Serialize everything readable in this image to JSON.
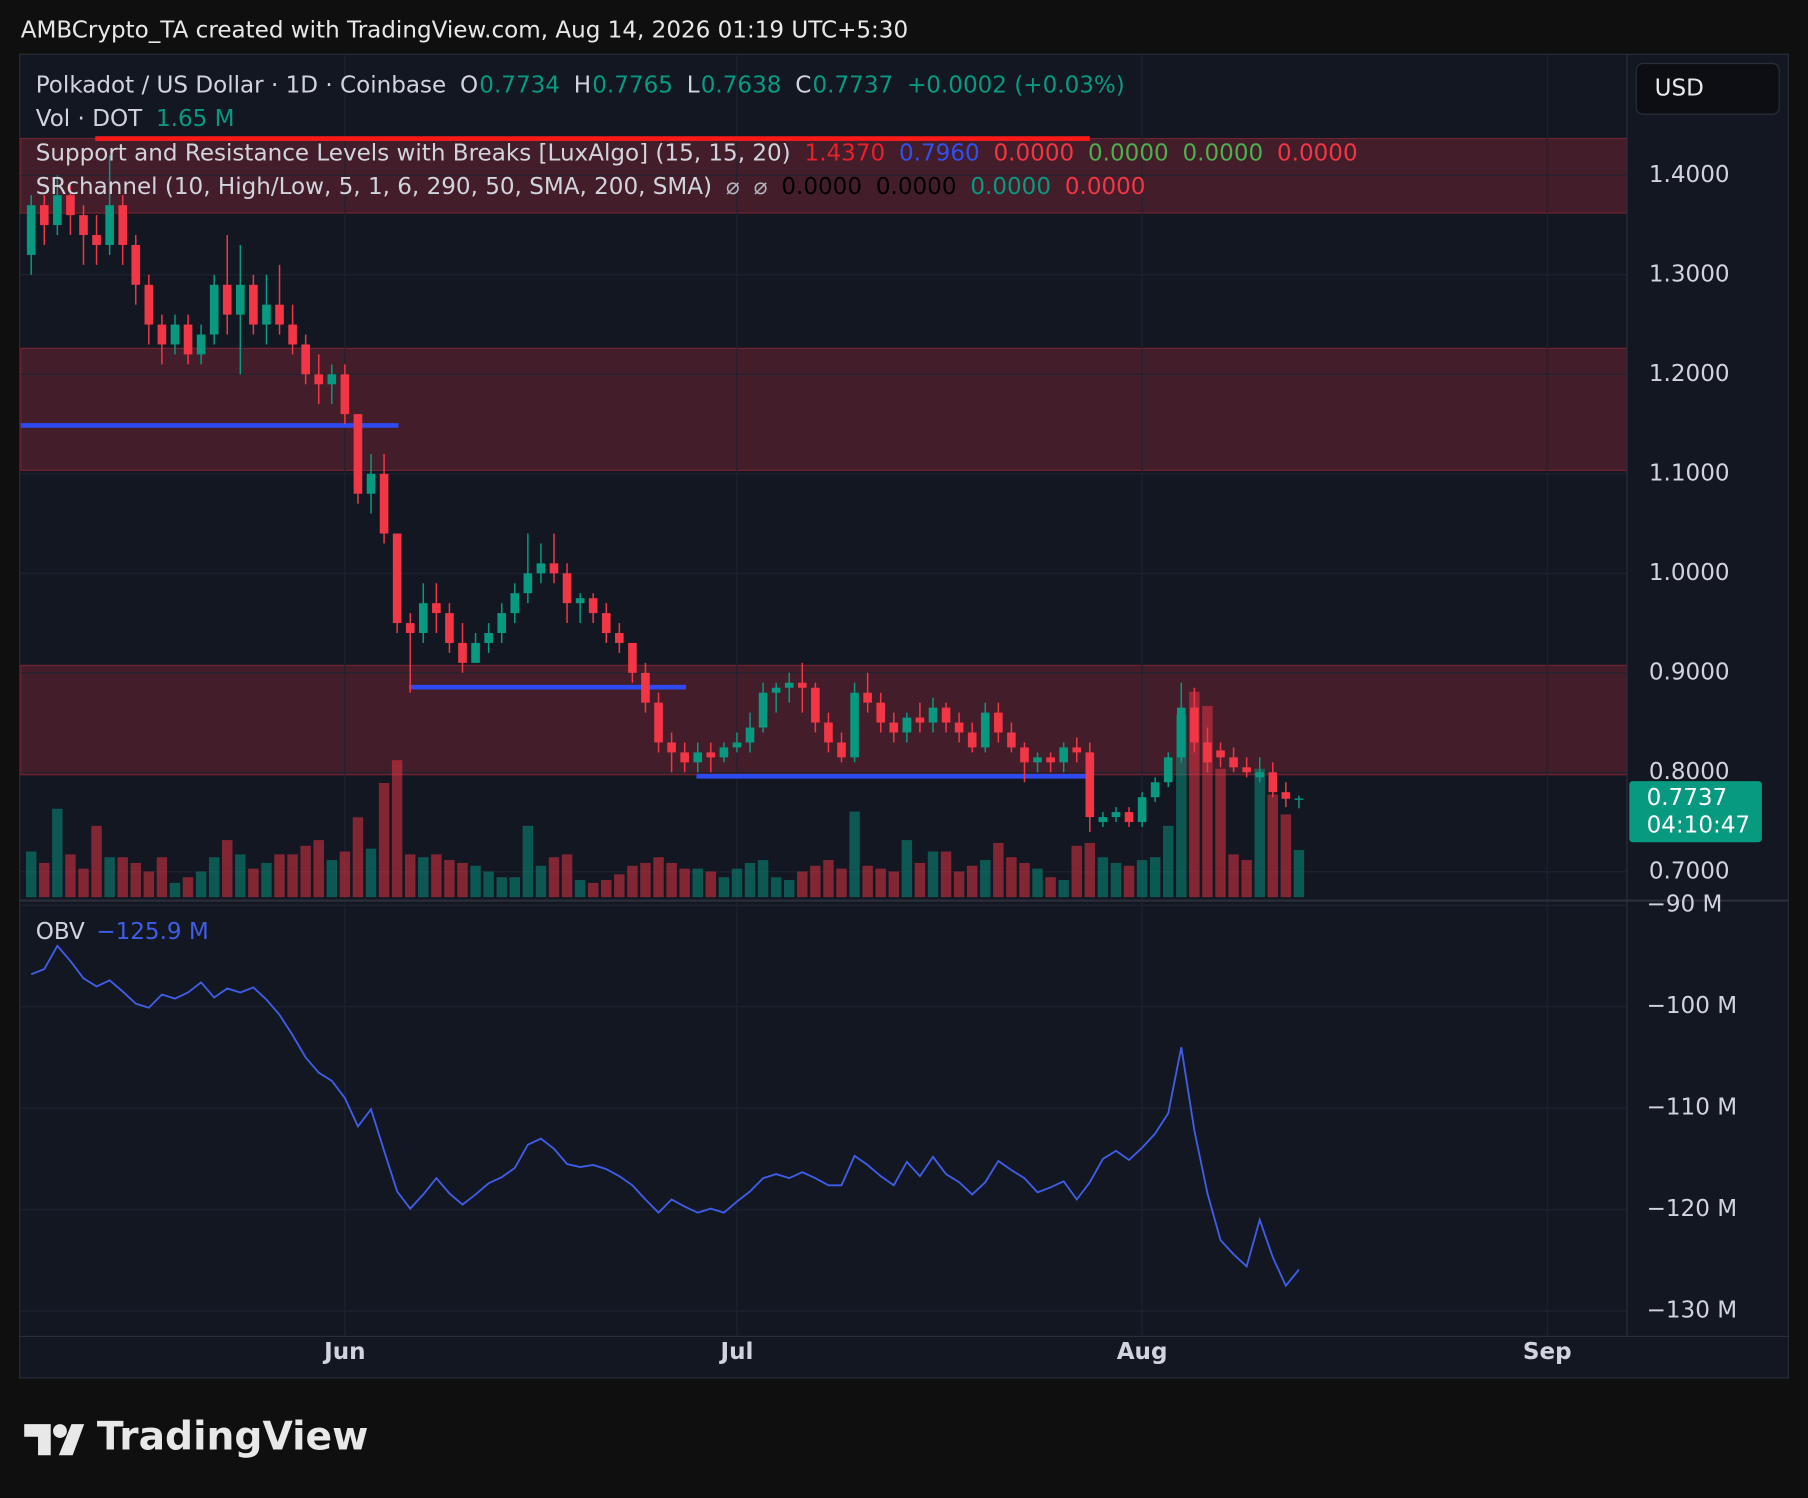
{
  "header": {
    "attribution": "AMBCrypto_TA created with TradingView.com, Aug 14, 2026 01:19 UTC+5:30"
  },
  "footer": {
    "logo": "TradingView"
  },
  "chart_data": {
    "type": "candlestick",
    "currency": "USD",
    "legend_rows": [
      [
        {
          "text": "Polkadot / US Dollar · 1D · Coinbase",
          "color": "#d1d4dc"
        },
        {
          "text": "O",
          "color": "#d1d4dc"
        },
        {
          "text": "0.7734",
          "color": "#089981"
        },
        {
          "text": "H",
          "color": "#d1d4dc"
        },
        {
          "text": "0.7765",
          "color": "#089981"
        },
        {
          "text": "L",
          "color": "#d1d4dc"
        },
        {
          "text": "0.7638",
          "color": "#089981"
        },
        {
          "text": "C",
          "color": "#d1d4dc"
        },
        {
          "text": "0.7737",
          "color": "#089981"
        },
        {
          "text": "+0.0002 (+0.03%)",
          "color": "#089981"
        }
      ],
      [
        {
          "text": "Vol · DOT",
          "color": "#d1d4dc"
        },
        {
          "text": "1.65 M",
          "color": "#089981"
        }
      ],
      [
        {
          "text": "Support and Resistance Levels with Breaks [LuxAlgo] (15, 15, 20)",
          "color": "#d1d4dc"
        },
        {
          "text": "1.4370",
          "color": "#e8202c"
        },
        {
          "text": "0.7960",
          "color": "#3050f0"
        },
        {
          "text": "0.0000",
          "color": "#f23645"
        },
        {
          "text": "0.0000",
          "color": "#4caf50"
        },
        {
          "text": "0.0000",
          "color": "#4caf50"
        },
        {
          "text": "0.0000",
          "color": "#f23645"
        }
      ],
      [
        {
          "text": "SRchannel (10, High/Low, 5, 1, 6, 290, 50, SMA, 200, SMA)",
          "color": "#d1d4dc"
        },
        {
          "text": "⌀",
          "color": "#b2b5be"
        },
        {
          "text": "⌀",
          "color": "#b2b5be"
        },
        {
          "text": "0.0000",
          "color": "#000000"
        },
        {
          "text": "0.0000",
          "color": "#000000"
        },
        {
          "text": "0.0000",
          "color": "#089981"
        },
        {
          "text": "0.0000",
          "color": "#f23645"
        }
      ]
    ],
    "price_tag": {
      "price": "0.7737",
      "countdown": "04:10:47",
      "color": "#089981"
    },
    "up_color": "#089981",
    "down_color": "#f23645",
    "xlim": [
      -0.8,
      122.1
    ],
    "xticks": [
      {
        "value": 24,
        "label": "Jun"
      },
      {
        "value": 54,
        "label": "Jul"
      },
      {
        "value": 85,
        "label": "Aug"
      },
      {
        "value": 116,
        "label": "Sep"
      }
    ],
    "ylim": [
      0.6745,
      1.5205
    ],
    "yticks": [
      {
        "value": 0.7,
        "label": "0.7000"
      },
      {
        "value": 0.8,
        "label": "0.8000"
      },
      {
        "value": 0.9,
        "label": "0.9000"
      },
      {
        "value": 1.0,
        "label": "1.0000"
      },
      {
        "value": 1.1,
        "label": "1.1000"
      },
      {
        "value": 1.2,
        "label": "1.2000"
      },
      {
        "value": 1.3,
        "label": "1.3000"
      },
      {
        "value": 1.4,
        "label": "1.4000"
      }
    ],
    "grid": true,
    "volume_ylim": [
      0,
      8
    ],
    "zone_color": "#f23645",
    "zones": [
      {
        "from": 1.362,
        "to": 1.437
      },
      {
        "from": 1.1034,
        "to": 1.2262
      },
      {
        "from": 0.7975,
        "to": 0.9075
      }
    ],
    "levels": [
      {
        "price": 1.437,
        "start": 4.9,
        "end": 81,
        "color": "#ff1a1a"
      },
      {
        "price": 1.1486,
        "start": -0.8,
        "end": 28.1,
        "color": "#2d4bf0"
      },
      {
        "price": 0.8855,
        "start": 28.9,
        "end": 50.1,
        "color": "#2d4bf0"
      },
      {
        "price": 0.796,
        "start": 50.9,
        "end": 81,
        "color": "#2d4bf0"
      }
    ],
    "obv": {
      "name": "OBV",
      "value_text": "−125.9 M",
      "color": "#3f5de8",
      "ylim": [
        -132.5,
        -90
      ],
      "yticks": [
        {
          "value": -90,
          "label": "−90 M"
        },
        {
          "value": -100,
          "label": "−100 M"
        },
        {
          "value": -110,
          "label": "−110 M"
        },
        {
          "value": -120,
          "label": "−120 M"
        },
        {
          "value": -130,
          "label": "−130 M"
        }
      ]
    },
    "candles": [
      {
        "o": 1.32,
        "h": 1.38,
        "l": 1.3,
        "c": 1.37,
        "v": 1.6,
        "obv": -96.8
      },
      {
        "o": 1.37,
        "h": 1.38,
        "l": 1.33,
        "c": 1.35,
        "v": 1.2,
        "obv": -96.3
      },
      {
        "o": 1.35,
        "h": 1.4,
        "l": 1.34,
        "c": 1.38,
        "v": 3.1,
        "obv": -94.0
      },
      {
        "o": 1.38,
        "h": 1.39,
        "l": 1.34,
        "c": 1.36,
        "v": 1.5,
        "obv": -95.5
      },
      {
        "o": 1.36,
        "h": 1.37,
        "l": 1.31,
        "c": 1.34,
        "v": 1.0,
        "obv": -97.2
      },
      {
        "o": 1.34,
        "h": 1.36,
        "l": 1.31,
        "c": 1.33,
        "v": 2.5,
        "obv": -98.0
      },
      {
        "o": 1.33,
        "h": 1.42,
        "l": 1.32,
        "c": 1.37,
        "v": 1.4,
        "obv": -97.4
      },
      {
        "o": 1.37,
        "h": 1.38,
        "l": 1.31,
        "c": 1.33,
        "v": 1.4,
        "obv": -98.5
      },
      {
        "o": 1.33,
        "h": 1.34,
        "l": 1.27,
        "c": 1.29,
        "v": 1.2,
        "obv": -99.7
      },
      {
        "o": 1.29,
        "h": 1.3,
        "l": 1.23,
        "c": 1.25,
        "v": 0.9,
        "obv": -100.1
      },
      {
        "o": 1.25,
        "h": 1.26,
        "l": 1.21,
        "c": 1.23,
        "v": 1.4,
        "obv": -98.8
      },
      {
        "o": 1.23,
        "h": 1.26,
        "l": 1.22,
        "c": 1.25,
        "v": 0.5,
        "obv": -99.2
      },
      {
        "o": 1.25,
        "h": 1.26,
        "l": 1.21,
        "c": 1.22,
        "v": 0.7,
        "obv": -98.6
      },
      {
        "o": 1.22,
        "h": 1.25,
        "l": 1.21,
        "c": 1.24,
        "v": 0.9,
        "obv": -97.6
      },
      {
        "o": 1.24,
        "h": 1.3,
        "l": 1.23,
        "c": 1.29,
        "v": 1.4,
        "obv": -99.1
      },
      {
        "o": 1.29,
        "h": 1.34,
        "l": 1.24,
        "c": 1.26,
        "v": 2.0,
        "obv": -98.2
      },
      {
        "o": 1.26,
        "h": 1.33,
        "l": 1.2,
        "c": 1.29,
        "v": 1.5,
        "obv": -98.6
      },
      {
        "o": 1.29,
        "h": 1.3,
        "l": 1.24,
        "c": 1.25,
        "v": 1.0,
        "obv": -98.1
      },
      {
        "o": 1.25,
        "h": 1.3,
        "l": 1.23,
        "c": 1.27,
        "v": 1.2,
        "obv": -99.3
      },
      {
        "o": 1.27,
        "h": 1.31,
        "l": 1.24,
        "c": 1.25,
        "v": 1.5,
        "obv": -100.8
      },
      {
        "o": 1.25,
        "h": 1.27,
        "l": 1.22,
        "c": 1.23,
        "v": 1.5,
        "obv": -102.8
      },
      {
        "o": 1.23,
        "h": 1.24,
        "l": 1.19,
        "c": 1.2,
        "v": 1.8,
        "obv": -105.0
      },
      {
        "o": 1.2,
        "h": 1.22,
        "l": 1.17,
        "c": 1.19,
        "v": 2.0,
        "obv": -106.5
      },
      {
        "o": 1.19,
        "h": 1.21,
        "l": 1.17,
        "c": 1.2,
        "v": 1.3,
        "obv": -107.3
      },
      {
        "o": 1.2,
        "h": 1.21,
        "l": 1.15,
        "c": 1.16,
        "v": 1.6,
        "obv": -109.0
      },
      {
        "o": 1.16,
        "h": 1.16,
        "l": 1.07,
        "c": 1.08,
        "v": 2.8,
        "obv": -111.8
      },
      {
        "o": 1.08,
        "h": 1.12,
        "l": 1.06,
        "c": 1.1,
        "v": 1.7,
        "obv": -110.1
      },
      {
        "o": 1.1,
        "h": 1.12,
        "l": 1.03,
        "c": 1.04,
        "v": 4.0,
        "obv": -114.2
      },
      {
        "o": 1.04,
        "h": 1.04,
        "l": 0.94,
        "c": 0.95,
        "v": 4.8,
        "obv": -118.2
      },
      {
        "o": 0.95,
        "h": 0.96,
        "l": 0.88,
        "c": 0.94,
        "v": 1.5,
        "obv": -119.9
      },
      {
        "o": 0.94,
        "h": 0.99,
        "l": 0.93,
        "c": 0.97,
        "v": 1.4,
        "obv": -118.5
      },
      {
        "o": 0.97,
        "h": 0.99,
        "l": 0.94,
        "c": 0.96,
        "v": 1.5,
        "obv": -116.9
      },
      {
        "o": 0.96,
        "h": 0.97,
        "l": 0.92,
        "c": 0.93,
        "v": 1.3,
        "obv": -118.4
      },
      {
        "o": 0.93,
        "h": 0.95,
        "l": 0.9,
        "c": 0.91,
        "v": 1.2,
        "obv": -119.5
      },
      {
        "o": 0.91,
        "h": 0.94,
        "l": 0.91,
        "c": 0.93,
        "v": 1.1,
        "obv": -118.5
      },
      {
        "o": 0.93,
        "h": 0.95,
        "l": 0.92,
        "c": 0.94,
        "v": 0.9,
        "obv": -117.4
      },
      {
        "o": 0.94,
        "h": 0.97,
        "l": 0.93,
        "c": 0.96,
        "v": 0.7,
        "obv": -116.8
      },
      {
        "o": 0.96,
        "h": 0.99,
        "l": 0.95,
        "c": 0.98,
        "v": 0.7,
        "obv": -115.9
      },
      {
        "o": 0.98,
        "h": 1.04,
        "l": 0.97,
        "c": 1.0,
        "v": 2.5,
        "obv": -113.6
      },
      {
        "o": 1.0,
        "h": 1.03,
        "l": 0.99,
        "c": 1.01,
        "v": 1.1,
        "obv": -113.0
      },
      {
        "o": 1.01,
        "h": 1.04,
        "l": 0.99,
        "c": 1.0,
        "v": 1.4,
        "obv": -114.0
      },
      {
        "o": 1.0,
        "h": 1.01,
        "l": 0.95,
        "c": 0.97,
        "v": 1.5,
        "obv": -115.5
      },
      {
        "o": 0.97,
        "h": 0.98,
        "l": 0.95,
        "c": 0.975,
        "v": 0.6,
        "obv": -115.8
      },
      {
        "o": 0.975,
        "h": 0.98,
        "l": 0.95,
        "c": 0.96,
        "v": 0.5,
        "obv": -115.6
      },
      {
        "o": 0.96,
        "h": 0.97,
        "l": 0.93,
        "c": 0.94,
        "v": 0.6,
        "obv": -116.0
      },
      {
        "o": 0.94,
        "h": 0.95,
        "l": 0.92,
        "c": 0.93,
        "v": 0.8,
        "obv": -116.7
      },
      {
        "o": 0.93,
        "h": 0.93,
        "l": 0.89,
        "c": 0.9,
        "v": 1.1,
        "obv": -117.6
      },
      {
        "o": 0.9,
        "h": 0.91,
        "l": 0.86,
        "c": 0.87,
        "v": 1.2,
        "obv": -119.0
      },
      {
        "o": 0.87,
        "h": 0.88,
        "l": 0.82,
        "c": 0.83,
        "v": 1.4,
        "obv": -120.3
      },
      {
        "o": 0.83,
        "h": 0.84,
        "l": 0.8,
        "c": 0.82,
        "v": 1.2,
        "obv": -119.0
      },
      {
        "o": 0.82,
        "h": 0.83,
        "l": 0.8,
        "c": 0.81,
        "v": 1.0,
        "obv": -119.7
      },
      {
        "o": 0.81,
        "h": 0.83,
        "l": 0.8,
        "c": 0.82,
        "v": 1.0,
        "obv": -120.3
      },
      {
        "o": 0.82,
        "h": 0.83,
        "l": 0.8,
        "c": 0.815,
        "v": 0.9,
        "obv": -119.9
      },
      {
        "o": 0.815,
        "h": 0.83,
        "l": 0.81,
        "c": 0.825,
        "v": 0.7,
        "obv": -120.3
      },
      {
        "o": 0.825,
        "h": 0.84,
        "l": 0.82,
        "c": 0.83,
        "v": 1.0,
        "obv": -119.2
      },
      {
        "o": 0.83,
        "h": 0.86,
        "l": 0.82,
        "c": 0.845,
        "v": 1.2,
        "obv": -118.2
      },
      {
        "o": 0.845,
        "h": 0.89,
        "l": 0.84,
        "c": 0.88,
        "v": 1.3,
        "obv": -116.9
      },
      {
        "o": 0.88,
        "h": 0.89,
        "l": 0.86,
        "c": 0.885,
        "v": 0.7,
        "obv": -116.5
      },
      {
        "o": 0.885,
        "h": 0.9,
        "l": 0.87,
        "c": 0.89,
        "v": 0.6,
        "obv": -116.9
      },
      {
        "o": 0.89,
        "h": 0.91,
        "l": 0.86,
        "c": 0.885,
        "v": 0.9,
        "obv": -116.3
      },
      {
        "o": 0.885,
        "h": 0.89,
        "l": 0.84,
        "c": 0.85,
        "v": 1.1,
        "obv": -116.9
      },
      {
        "o": 0.85,
        "h": 0.86,
        "l": 0.82,
        "c": 0.83,
        "v": 1.3,
        "obv": -117.6
      },
      {
        "o": 0.83,
        "h": 0.84,
        "l": 0.81,
        "c": 0.815,
        "v": 1.0,
        "obv": -117.6
      },
      {
        "o": 0.815,
        "h": 0.89,
        "l": 0.81,
        "c": 0.88,
        "v": 3.0,
        "obv": -114.7
      },
      {
        "o": 0.88,
        "h": 0.9,
        "l": 0.86,
        "c": 0.87,
        "v": 1.1,
        "obv": -115.6
      },
      {
        "o": 0.87,
        "h": 0.88,
        "l": 0.84,
        "c": 0.85,
        "v": 1.0,
        "obv": -116.7
      },
      {
        "o": 0.85,
        "h": 0.86,
        "l": 0.83,
        "c": 0.84,
        "v": 0.9,
        "obv": -117.6
      },
      {
        "o": 0.84,
        "h": 0.86,
        "l": 0.83,
        "c": 0.855,
        "v": 2.0,
        "obv": -115.3
      },
      {
        "o": 0.855,
        "h": 0.87,
        "l": 0.84,
        "c": 0.85,
        "v": 1.2,
        "obv": -116.7
      },
      {
        "o": 0.85,
        "h": 0.875,
        "l": 0.84,
        "c": 0.865,
        "v": 1.6,
        "obv": -114.8
      },
      {
        "o": 0.865,
        "h": 0.87,
        "l": 0.84,
        "c": 0.85,
        "v": 1.6,
        "obv": -116.5
      },
      {
        "o": 0.85,
        "h": 0.86,
        "l": 0.83,
        "c": 0.84,
        "v": 0.9,
        "obv": -117.3
      },
      {
        "o": 0.84,
        "h": 0.85,
        "l": 0.82,
        "c": 0.825,
        "v": 1.1,
        "obv": -118.5
      },
      {
        "o": 0.825,
        "h": 0.87,
        "l": 0.82,
        "c": 0.86,
        "v": 1.3,
        "obv": -117.3
      },
      {
        "o": 0.86,
        "h": 0.87,
        "l": 0.83,
        "c": 0.84,
        "v": 1.9,
        "obv": -115.2
      },
      {
        "o": 0.84,
        "h": 0.85,
        "l": 0.82,
        "c": 0.825,
        "v": 1.4,
        "obv": -116.1
      },
      {
        "o": 0.825,
        "h": 0.83,
        "l": 0.79,
        "c": 0.81,
        "v": 1.2,
        "obv": -116.9
      },
      {
        "o": 0.81,
        "h": 0.82,
        "l": 0.8,
        "c": 0.815,
        "v": 1.0,
        "obv": -118.3
      },
      {
        "o": 0.815,
        "h": 0.82,
        "l": 0.8,
        "c": 0.81,
        "v": 0.7,
        "obv": -117.8
      },
      {
        "o": 0.81,
        "h": 0.83,
        "l": 0.8,
        "c": 0.825,
        "v": 0.6,
        "obv": -117.2
      },
      {
        "o": 0.825,
        "h": 0.835,
        "l": 0.81,
        "c": 0.82,
        "v": 1.8,
        "obv": -119.0
      },
      {
        "o": 0.82,
        "h": 0.83,
        "l": 0.74,
        "c": 0.755,
        "v": 1.9,
        "obv": -117.3
      },
      {
        "o": 0.75,
        "h": 0.76,
        "l": 0.745,
        "c": 0.755,
        "v": 1.4,
        "obv": -115.0
      },
      {
        "o": 0.755,
        "h": 0.765,
        "l": 0.75,
        "c": 0.76,
        "v": 1.2,
        "obv": -114.2
      },
      {
        "o": 0.76,
        "h": 0.765,
        "l": 0.745,
        "c": 0.75,
        "v": 1.1,
        "obv": -115.1
      },
      {
        "o": 0.75,
        "h": 0.78,
        "l": 0.745,
        "c": 0.775,
        "v": 1.3,
        "obv": -113.9
      },
      {
        "o": 0.775,
        "h": 0.795,
        "l": 0.77,
        "c": 0.79,
        "v": 1.4,
        "obv": -112.5
      },
      {
        "o": 0.79,
        "h": 0.82,
        "l": 0.785,
        "c": 0.815,
        "v": 2.5,
        "obv": -110.5
      },
      {
        "o": 0.815,
        "h": 0.89,
        "l": 0.81,
        "c": 0.865,
        "v": 6.4,
        "obv": -104.0
      },
      {
        "o": 0.865,
        "h": 0.885,
        "l": 0.82,
        "c": 0.83,
        "v": 7.2,
        "obv": -112.2
      },
      {
        "o": 0.83,
        "h": 0.845,
        "l": 0.8,
        "c": 0.81,
        "v": 6.7,
        "obv": -118.4
      },
      {
        "o": 0.822,
        "h": 0.83,
        "l": 0.805,
        "c": 0.815,
        "v": 4.5,
        "obv": -123.0
      },
      {
        "o": 0.815,
        "h": 0.825,
        "l": 0.8,
        "c": 0.805,
        "v": 1.5,
        "obv": -124.4
      },
      {
        "o": 0.805,
        "h": 0.815,
        "l": 0.795,
        "c": 0.8,
        "v": 1.3,
        "obv": -125.6
      },
      {
        "o": 0.795,
        "h": 0.815,
        "l": 0.79,
        "c": 0.8,
        "v": 4.5,
        "obv": -121.0
      },
      {
        "o": 0.8,
        "h": 0.81,
        "l": 0.775,
        "c": 0.78,
        "v": 3.6,
        "obv": -124.7
      },
      {
        "o": 0.78,
        "h": 0.79,
        "l": 0.765,
        "c": 0.7734,
        "v": 2.9,
        "obv": -127.5
      },
      {
        "o": 0.7734,
        "h": 0.7765,
        "l": 0.7638,
        "c": 0.7737,
        "v": 1.65,
        "obv": -125.9
      }
    ]
  }
}
